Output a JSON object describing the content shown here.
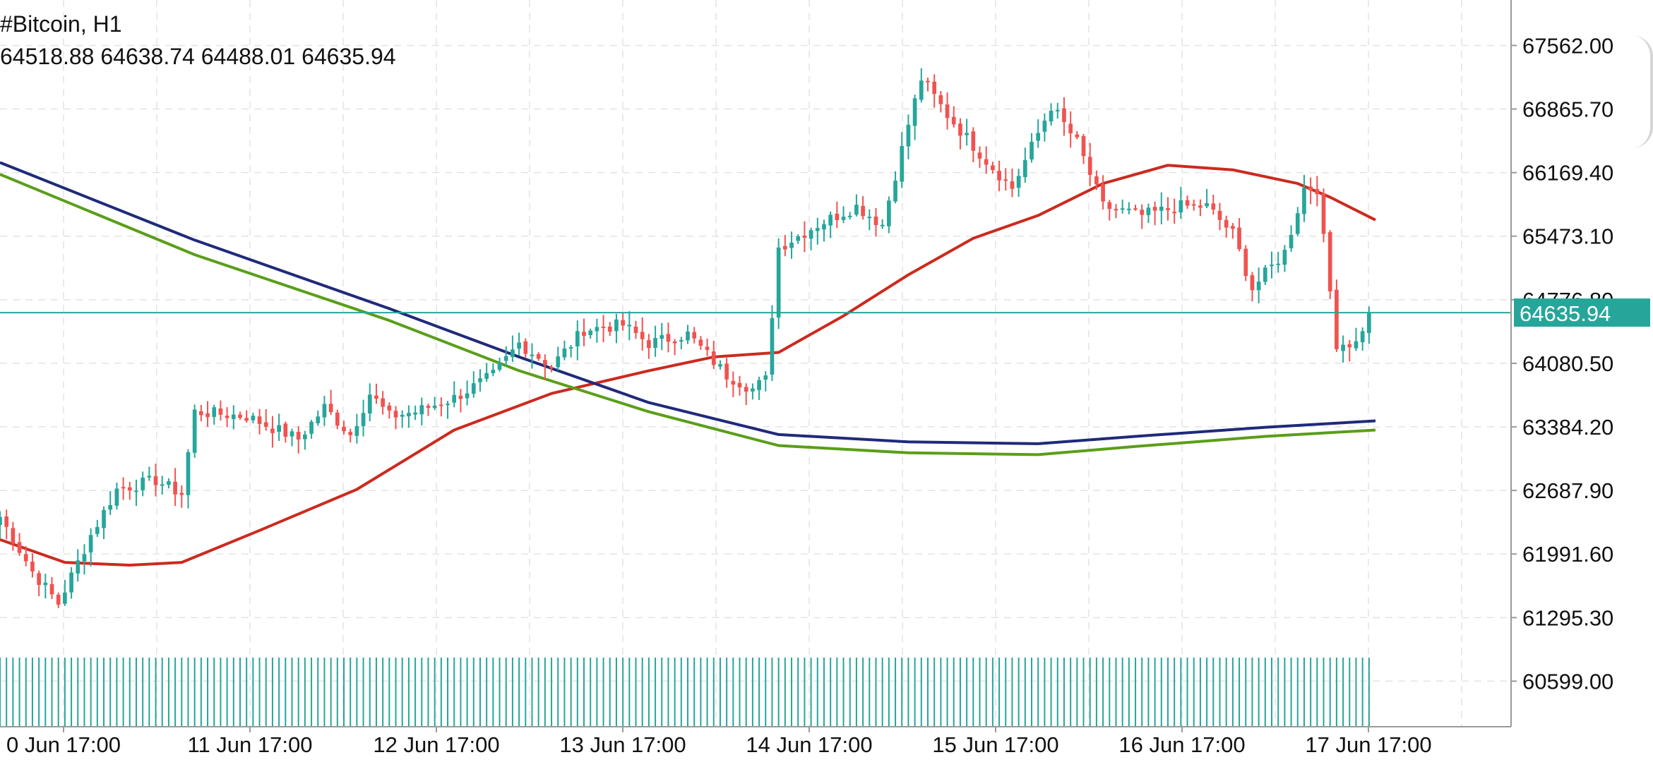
{
  "header": {
    "symbol": "#Bitcoin, H1",
    "ohlc": "64518.88 64638.74 64488.01 64635.94"
  },
  "colors": {
    "bull": "#26a69a",
    "bear": "#ef5350",
    "ma_red": "#cc2a1e",
    "ma_navy": "#1f2a7a",
    "ma_green": "#5a9e1a",
    "price_line": "#26a69a",
    "grid": "#e3e3e3",
    "axis": "#9a9a9a"
  },
  "chart_data": {
    "type": "candlestick",
    "symbol": "#Bitcoin",
    "timeframe": "H1",
    "current_price": 64635.94,
    "current_price_label": "64635.94",
    "y_ticks": [
      67562.0,
      66865.7,
      66169.4,
      65473.1,
      64776.8,
      64080.5,
      63384.2,
      62687.9,
      61991.6,
      61295.3,
      60599.0
    ],
    "y_tick_labels": [
      "67562.00",
      "66865.70",
      "66169.40",
      "65473.10",
      "64776.80",
      "64080.50",
      "63384.20",
      "62687.90",
      "61991.60",
      "61295.30",
      "60599.00"
    ],
    "ylim": [
      60100,
      68060
    ],
    "x_tick_labels": [
      "0 Jun 17:00",
      "11 Jun 17:00",
      "12 Jun 17:00",
      "13 Jun 17:00",
      "14 Jun 17:00",
      "15 Jun 17:00",
      "16 Jun 17:00",
      "17 Jun 17:00"
    ],
    "grid": true,
    "close_path": [
      {
        "bar": 0,
        "v": 62400
      },
      {
        "bar": 5,
        "v": 61800
      },
      {
        "bar": 9,
        "v": 61450
      },
      {
        "bar": 14,
        "v": 62200
      },
      {
        "bar": 18,
        "v": 62700
      },
      {
        "bar": 24,
        "v": 62800
      },
      {
        "bar": 28,
        "v": 62650
      },
      {
        "bar": 30,
        "v": 63550
      },
      {
        "bar": 38,
        "v": 63500
      },
      {
        "bar": 46,
        "v": 63250
      },
      {
        "bar": 50,
        "v": 63600
      },
      {
        "bar": 54,
        "v": 63300
      },
      {
        "bar": 57,
        "v": 63750
      },
      {
        "bar": 60,
        "v": 63500
      },
      {
        "bar": 64,
        "v": 63550
      },
      {
        "bar": 70,
        "v": 63700
      },
      {
        "bar": 76,
        "v": 63950
      },
      {
        "bar": 80,
        "v": 64300
      },
      {
        "bar": 85,
        "v": 64050
      },
      {
        "bar": 90,
        "v": 64450
      },
      {
        "bar": 96,
        "v": 64500
      },
      {
        "bar": 100,
        "v": 64300
      },
      {
        "bar": 106,
        "v": 64400
      },
      {
        "bar": 112,
        "v": 63950
      },
      {
        "bar": 116,
        "v": 63800
      },
      {
        "bar": 118,
        "v": 63900
      },
      {
        "bar": 120,
        "v": 65350
      },
      {
        "bar": 126,
        "v": 65600
      },
      {
        "bar": 132,
        "v": 65800
      },
      {
        "bar": 136,
        "v": 65600
      },
      {
        "bar": 140,
        "v": 66700
      },
      {
        "bar": 142,
        "v": 67200
      },
      {
        "bar": 146,
        "v": 66800
      },
      {
        "bar": 152,
        "v": 66300
      },
      {
        "bar": 156,
        "v": 66000
      },
      {
        "bar": 160,
        "v": 66600
      },
      {
        "bar": 162,
        "v": 66900
      },
      {
        "bar": 166,
        "v": 66500
      },
      {
        "bar": 170,
        "v": 65800
      },
      {
        "bar": 176,
        "v": 65700
      },
      {
        "bar": 182,
        "v": 65800
      },
      {
        "bar": 186,
        "v": 65800
      },
      {
        "bar": 190,
        "v": 65500
      },
      {
        "bar": 193,
        "v": 64900
      },
      {
        "bar": 198,
        "v": 65300
      },
      {
        "bar": 201,
        "v": 66000
      },
      {
        "bar": 203,
        "v": 66000
      },
      {
        "bar": 206,
        "v": 64300
      },
      {
        "bar": 209,
        "v": 64300
      },
      {
        "bar": 211,
        "v": 64640
      }
    ],
    "total_bars": 212,
    "last_bar_x_frac": 0.906,
    "series": [
      {
        "name": "",
        "color_key": "ma_red",
        "values": [
          {
            "bar": 0,
            "v": 62150
          },
          {
            "bar": 10,
            "v": 61900
          },
          {
            "bar": 20,
            "v": 61870
          },
          {
            "bar": 28,
            "v": 61900
          },
          {
            "bar": 40,
            "v": 62250
          },
          {
            "bar": 55,
            "v": 62700
          },
          {
            "bar": 70,
            "v": 63350
          },
          {
            "bar": 85,
            "v": 63750
          },
          {
            "bar": 100,
            "v": 64000
          },
          {
            "bar": 110,
            "v": 64150
          },
          {
            "bar": 120,
            "v": 64200
          },
          {
            "bar": 130,
            "v": 64600
          },
          {
            "bar": 140,
            "v": 65050
          },
          {
            "bar": 150,
            "v": 65450
          },
          {
            "bar": 160,
            "v": 65700
          },
          {
            "bar": 170,
            "v": 66050
          },
          {
            "bar": 180,
            "v": 66250
          },
          {
            "bar": 190,
            "v": 66200
          },
          {
            "bar": 200,
            "v": 66050
          },
          {
            "bar": 205,
            "v": 65900
          },
          {
            "bar": 212,
            "v": 65650
          }
        ]
      },
      {
        "name": "",
        "color_key": "ma_navy",
        "values": [
          {
            "bar": 0,
            "v": 66280
          },
          {
            "bar": 30,
            "v": 65430
          },
          {
            "bar": 60,
            "v": 64680
          },
          {
            "bar": 80,
            "v": 64150
          },
          {
            "bar": 100,
            "v": 63650
          },
          {
            "bar": 120,
            "v": 63300
          },
          {
            "bar": 140,
            "v": 63220
          },
          {
            "bar": 160,
            "v": 63200
          },
          {
            "bar": 175,
            "v": 63280
          },
          {
            "bar": 195,
            "v": 63380
          },
          {
            "bar": 212,
            "v": 63450
          }
        ]
      },
      {
        "name": "",
        "color_key": "ma_green",
        "values": [
          {
            "bar": 0,
            "v": 66150
          },
          {
            "bar": 30,
            "v": 65270
          },
          {
            "bar": 60,
            "v": 64550
          },
          {
            "bar": 80,
            "v": 64000
          },
          {
            "bar": 100,
            "v": 63550
          },
          {
            "bar": 120,
            "v": 63180
          },
          {
            "bar": 140,
            "v": 63100
          },
          {
            "bar": 160,
            "v": 63080
          },
          {
            "bar": 175,
            "v": 63170
          },
          {
            "bar": 195,
            "v": 63280
          },
          {
            "bar": 212,
            "v": 63350
          }
        ]
      }
    ]
  }
}
